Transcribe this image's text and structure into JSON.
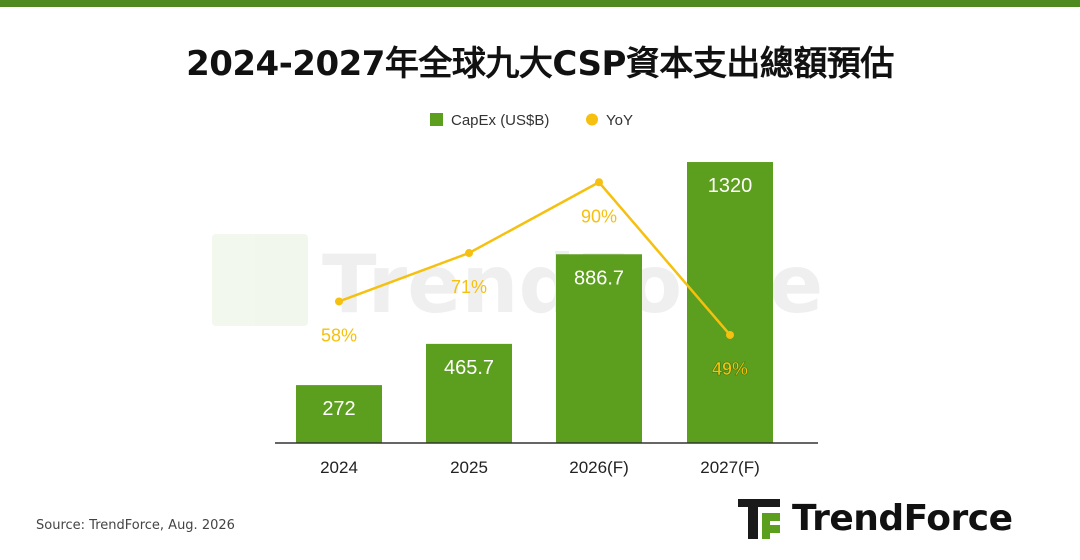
{
  "title": "2024-2027年全球九大CSP資本支出總額預估",
  "colors": {
    "accent_bar": "#4e8a1f",
    "bar": "#5c9e1d",
    "line": "#f5c00f",
    "axis": "#333333",
    "text": "#222222"
  },
  "chart_data": {
    "type": "bar",
    "categories": [
      "2024",
      "2025",
      "2026(F)",
      "2027(F)"
    ],
    "series": [
      {
        "name": "CapEx (US$B)",
        "type": "bar",
        "values": [
          272,
          465.7,
          886.7,
          1320
        ],
        "labels": [
          "272",
          "465.7",
          "886.7",
          "1320"
        ]
      },
      {
        "name": "YoY",
        "type": "line",
        "values": [
          58,
          71,
          90,
          49
        ],
        "labels": [
          "58%",
          "71%",
          "90%",
          "49%"
        ]
      }
    ],
    "legend": "top-center",
    "bar_ylim": [
      0,
      1400
    ],
    "line_ylim": [
      20,
      100
    ],
    "grid": false
  },
  "watermark": "TrendForce",
  "source": "Source: TrendForce, Aug. 2026",
  "brand": {
    "name": "TrendForce",
    "icon": "trendforce-logo-icon"
  }
}
